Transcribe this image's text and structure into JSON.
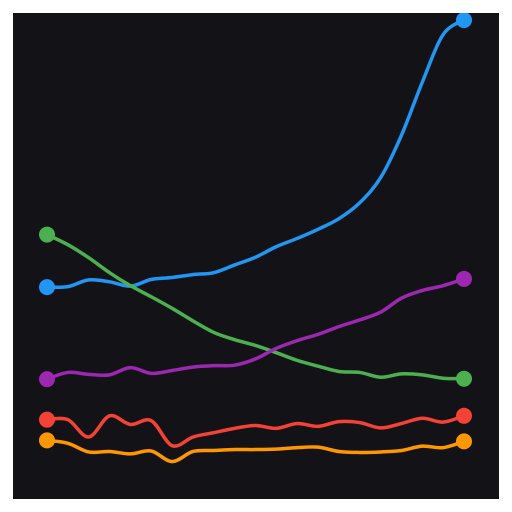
{
  "chart_data": {
    "type": "line",
    "title": "",
    "xlabel": "",
    "ylabel": "",
    "grid": false,
    "legend": "none",
    "background": "#131217",
    "x": [
      0,
      1,
      2,
      3,
      4,
      5,
      6,
      7,
      8,
      9,
      10,
      11,
      12,
      13,
      14,
      15,
      16,
      17,
      18,
      19,
      20
    ],
    "xlim": [
      0,
      20
    ],
    "ylim": [
      0,
      100
    ],
    "series": [
      {
        "color": "#2196f3",
        "values": [
          42.3,
          42.4,
          43.8,
          43.4,
          42.5,
          43.9,
          44.3,
          44.9,
          45.3,
          46.9,
          48.5,
          50.7,
          52.4,
          54.3,
          56.5,
          59.8,
          65.0,
          73.8,
          84.8,
          94.7,
          97.7
        ]
      },
      {
        "color": "#4caf50",
        "values": [
          53.2,
          51.1,
          48.4,
          45.3,
          42.6,
          40.3,
          37.9,
          35.3,
          32.9,
          31.4,
          30.2,
          28.7,
          27.1,
          25.9,
          24.8,
          24.6,
          23.6,
          24.3,
          24.1,
          23.4,
          23.3
        ]
      },
      {
        "color": "#9c27b0",
        "values": [
          23.2,
          24.6,
          24.2,
          24.1,
          25.6,
          24.4,
          25.0,
          25.7,
          26.0,
          26.1,
          27.4,
          29.6,
          31.2,
          32.5,
          34.1,
          35.5,
          37.1,
          40.0,
          41.6,
          42.6,
          44.0
        ]
      },
      {
        "color": "#f44336",
        "values": [
          14.8,
          14.8,
          11.2,
          15.6,
          13.8,
          14.6,
          9.4,
          11.2,
          12.1,
          13.0,
          13.6,
          13.0,
          14.0,
          13.4,
          14.4,
          14.2,
          13.1,
          14.0,
          15.1,
          14.3,
          15.6
        ]
      },
      {
        "color": "#ff9800",
        "values": [
          10.5,
          9.9,
          8.1,
          8.2,
          7.7,
          8.3,
          6.1,
          8.2,
          8.4,
          8.6,
          8.6,
          8.7,
          9.0,
          9.1,
          8.2,
          8.0,
          8.1,
          8.4,
          9.3,
          9.0,
          10.3
        ]
      }
    ]
  }
}
